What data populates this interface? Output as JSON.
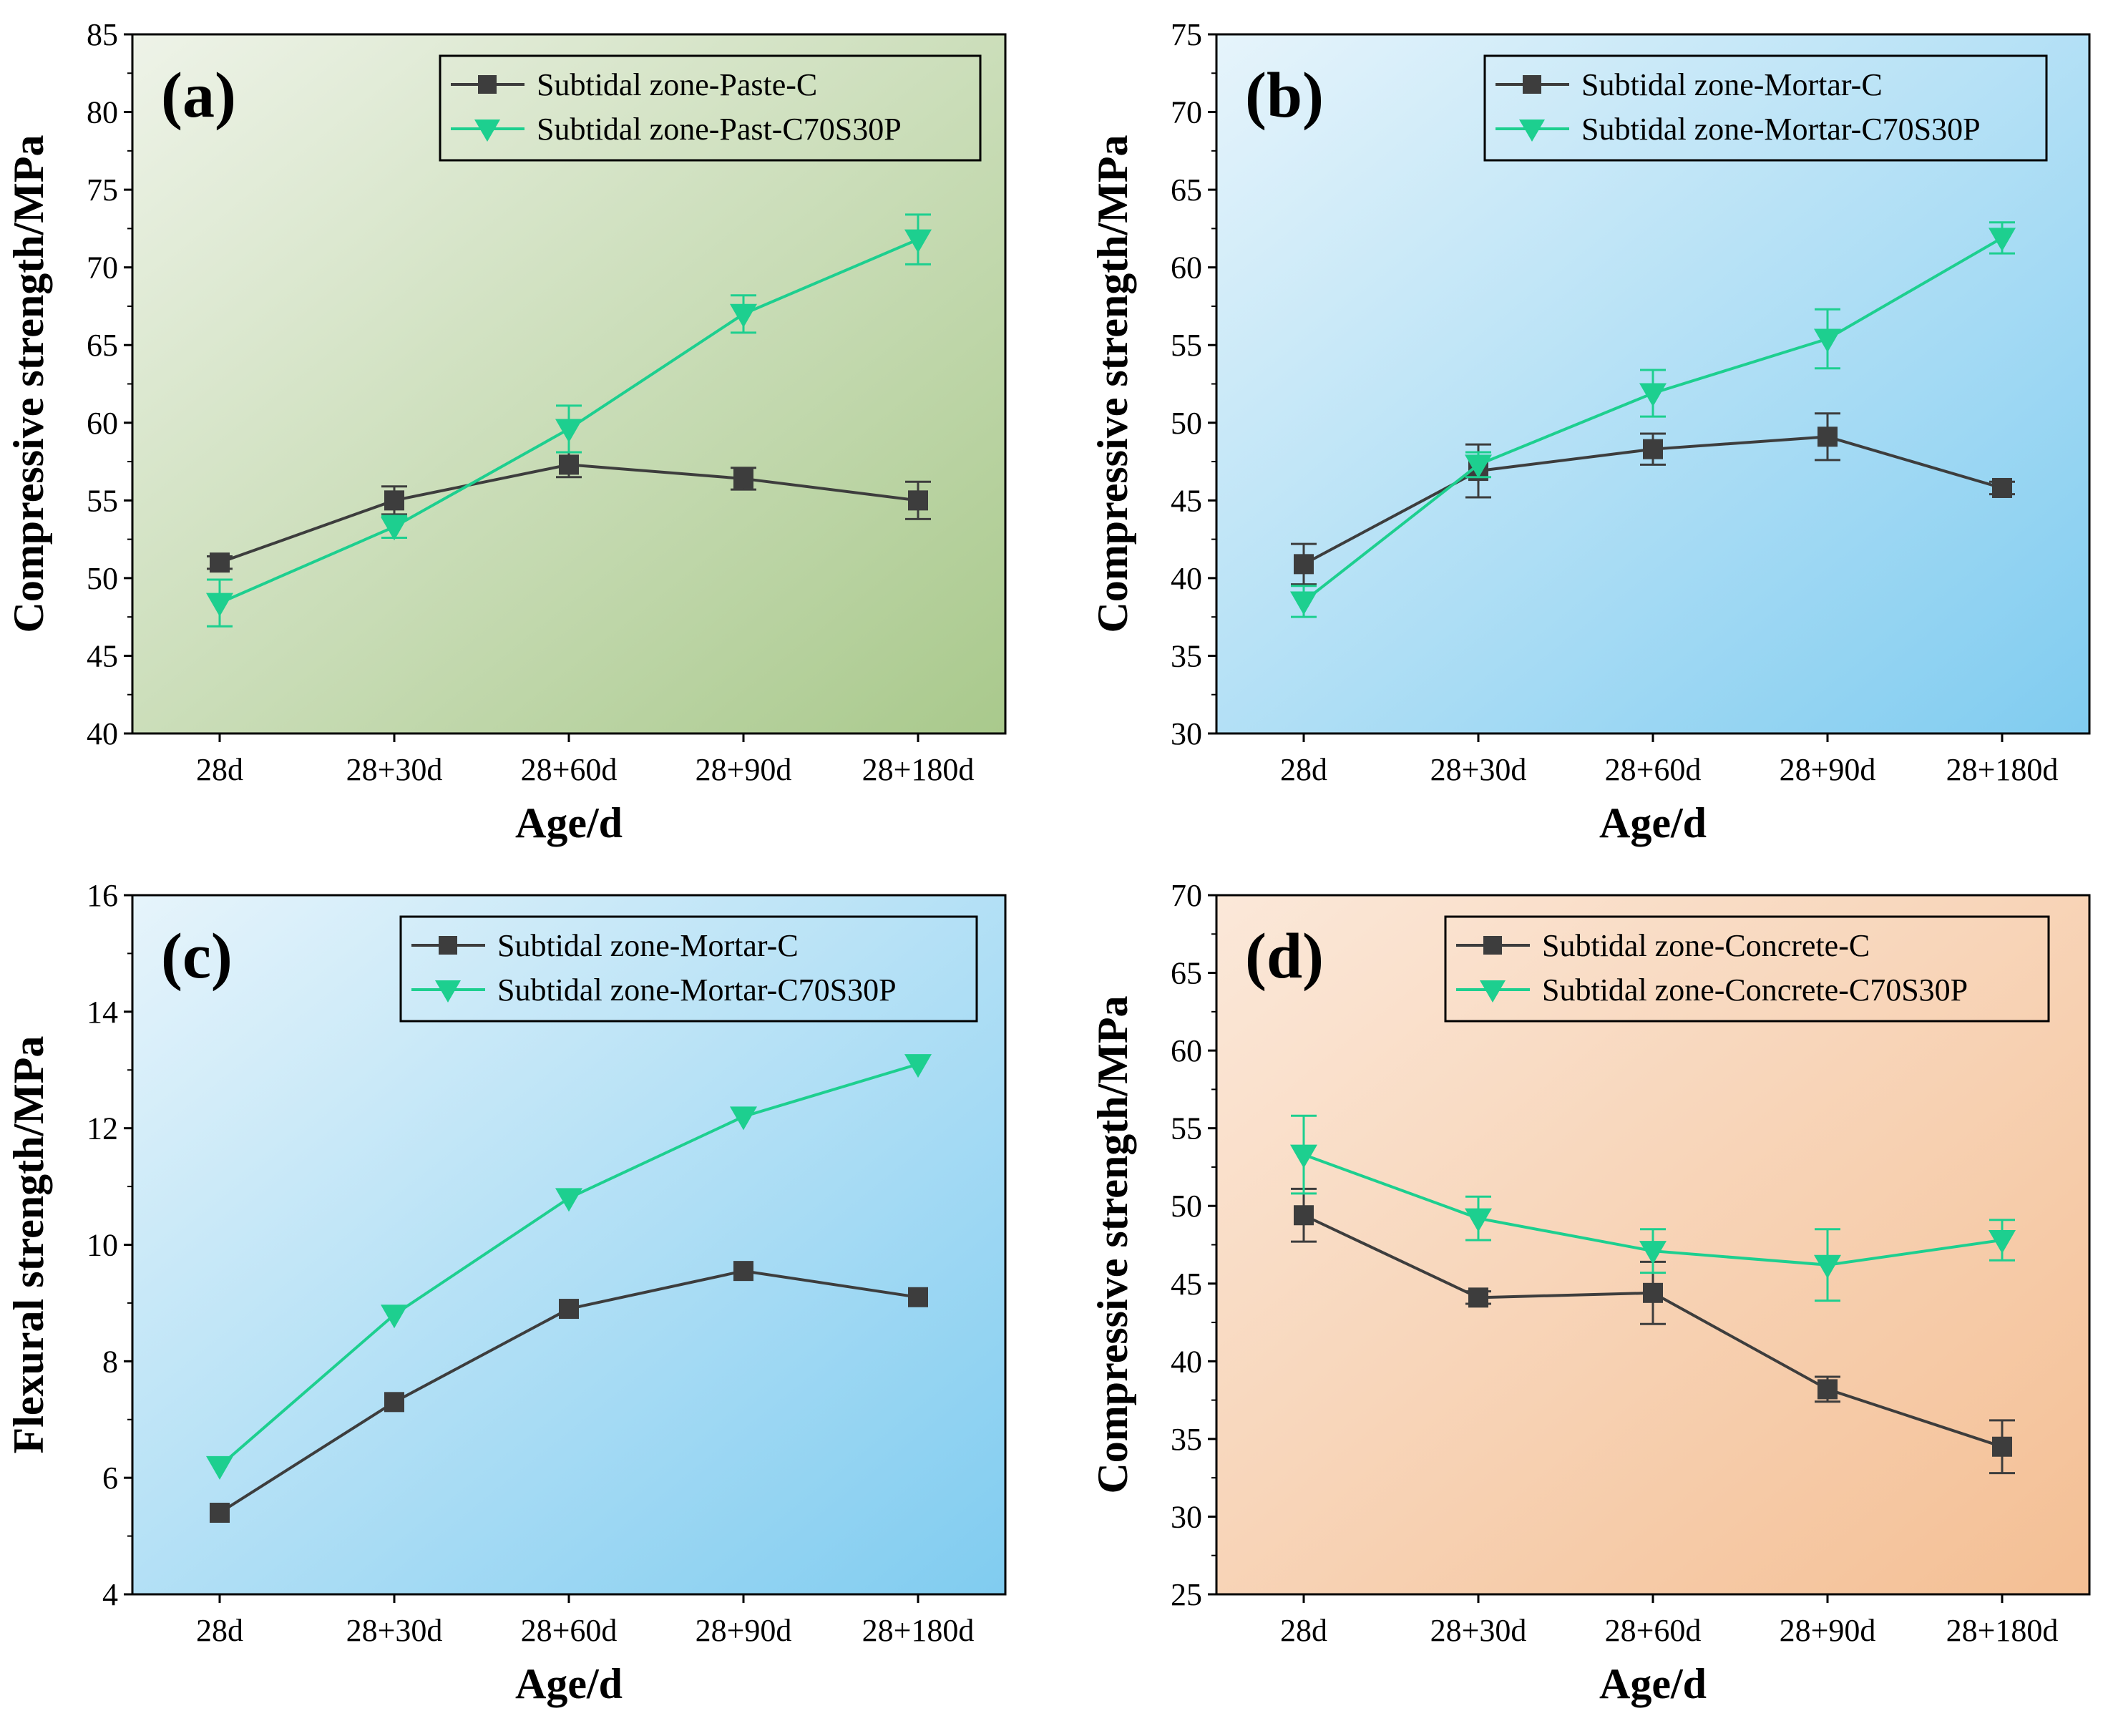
{
  "chart_data": [
    {
      "type": "line",
      "panel_label": "(a)",
      "categories": [
        "28d",
        "28+30d",
        "28+60d",
        "28+90d",
        "28+180d"
      ],
      "xlabel": "Age/d",
      "ylabel": "Compressive strength/MPa",
      "ylim": [
        40,
        85
      ],
      "yticks": [
        40,
        45,
        50,
        55,
        60,
        65,
        70,
        75,
        80,
        85
      ],
      "background": [
        "#eef3e8",
        "#a9c98c"
      ],
      "series": [
        {
          "name": "Subtidal zone-Paste-C",
          "color": "#3d3d3d",
          "marker": "square",
          "values": [
            51.0,
            55.0,
            57.3,
            56.4,
            55.0
          ],
          "errors": [
            0.4,
            0.9,
            0.8,
            0.7,
            1.2
          ]
        },
        {
          "name": "Subtidal zone-Past-C70S30P",
          "color": "#1dcf8f",
          "marker": "triangle-down",
          "values": [
            48.4,
            53.3,
            59.6,
            67.0,
            71.8
          ],
          "errors": [
            1.5,
            0.7,
            1.5,
            1.2,
            1.6
          ]
        }
      ]
    },
    {
      "type": "line",
      "panel_label": "(b)",
      "categories": [
        "28d",
        "28+30d",
        "28+60d",
        "28+90d",
        "28+180d"
      ],
      "xlabel": "Age/d",
      "ylabel": "Compressive strength/MPa",
      "ylim": [
        30,
        75
      ],
      "yticks": [
        30,
        35,
        40,
        45,
        50,
        55,
        60,
        65,
        70,
        75
      ],
      "background": [
        "#e6f4fb",
        "#80ccf0"
      ],
      "series": [
        {
          "name": "Subtidal zone-Mortar-C",
          "color": "#3d3d3d",
          "marker": "square",
          "values": [
            40.9,
            46.9,
            48.3,
            49.1,
            45.8
          ],
          "errors": [
            1.3,
            1.7,
            1.0,
            1.5,
            0.4
          ]
        },
        {
          "name": "Subtidal zone-Mortar-C70S30P",
          "color": "#1dcf8f",
          "marker": "triangle-down",
          "values": [
            38.5,
            47.3,
            51.9,
            55.4,
            61.9
          ],
          "errors": [
            1.0,
            0.8,
            1.5,
            1.9,
            1.0
          ]
        }
      ]
    },
    {
      "type": "line",
      "panel_label": "(c)",
      "categories": [
        "28d",
        "28+30d",
        "28+60d",
        "28+90d",
        "28+180d"
      ],
      "xlabel": "Age/d",
      "ylabel": "Flexural strength/MPa",
      "ylim": [
        4,
        16
      ],
      "yticks": [
        4,
        6,
        8,
        10,
        12,
        14,
        16
      ],
      "background": [
        "#e6f4fb",
        "#80ccf0"
      ],
      "series": [
        {
          "name": "Subtidal zone-Mortar-C",
          "color": "#3d3d3d",
          "marker": "square",
          "values": [
            5.4,
            7.3,
            8.9,
            9.55,
            9.1
          ],
          "errors": [
            0,
            0,
            0,
            0,
            0
          ]
        },
        {
          "name": "Subtidal zone-Mortar-C70S30P",
          "color": "#1dcf8f",
          "marker": "triangle-down",
          "values": [
            6.2,
            8.8,
            10.8,
            12.2,
            13.1
          ],
          "errors": [
            0,
            0,
            0,
            0,
            0
          ]
        }
      ]
    },
    {
      "type": "line",
      "panel_label": "(d)",
      "categories": [
        "28d",
        "28+30d",
        "28+60d",
        "28+90d",
        "28+180d"
      ],
      "xlabel": "Age/d",
      "ylabel": "Compressive strength/MPa",
      "ylim": [
        25,
        70
      ],
      "yticks": [
        25,
        30,
        35,
        40,
        45,
        50,
        55,
        60,
        65,
        70
      ],
      "background": [
        "#fbe8d9",
        "#f4bf94"
      ],
      "series": [
        {
          "name": "Subtidal zone-Concrete-C",
          "color": "#3d3d3d",
          "marker": "square",
          "values": [
            49.4,
            44.1,
            44.4,
            38.2,
            34.5
          ],
          "errors": [
            1.7,
            0.4,
            2.0,
            0.8,
            1.7
          ]
        },
        {
          "name": "Subtidal zone-Concrete-C70S30P",
          "color": "#1dcf8f",
          "marker": "triangle-down",
          "values": [
            53.3,
            49.2,
            47.1,
            46.2,
            47.8
          ],
          "errors": [
            2.5,
            1.4,
            1.4,
            2.3,
            1.3
          ]
        }
      ]
    }
  ]
}
